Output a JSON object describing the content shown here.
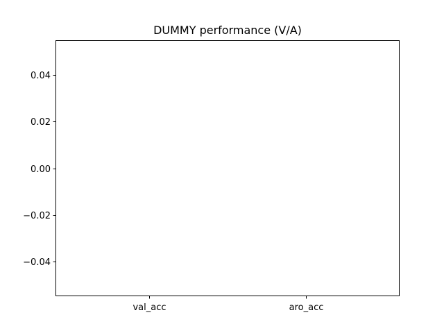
{
  "chart_data": {
    "type": "bar",
    "title": "DUMMY performance (V/A)",
    "xlabel": "",
    "ylabel": "",
    "categories": [
      "val_acc",
      "aro_acc"
    ],
    "values": [
      0,
      0
    ],
    "ylim": [
      -0.055,
      0.055
    ],
    "yticks": [
      -0.04,
      -0.02,
      0.0,
      0.02,
      0.04
    ],
    "ytick_labels": [
      "−0.04",
      "−0.02",
      "0.00",
      "0.02",
      "0.04"
    ],
    "grid": false,
    "legend": "none",
    "colors": {
      "axis": "#000000",
      "bar": "#1f77b4",
      "background": "#ffffff"
    }
  }
}
